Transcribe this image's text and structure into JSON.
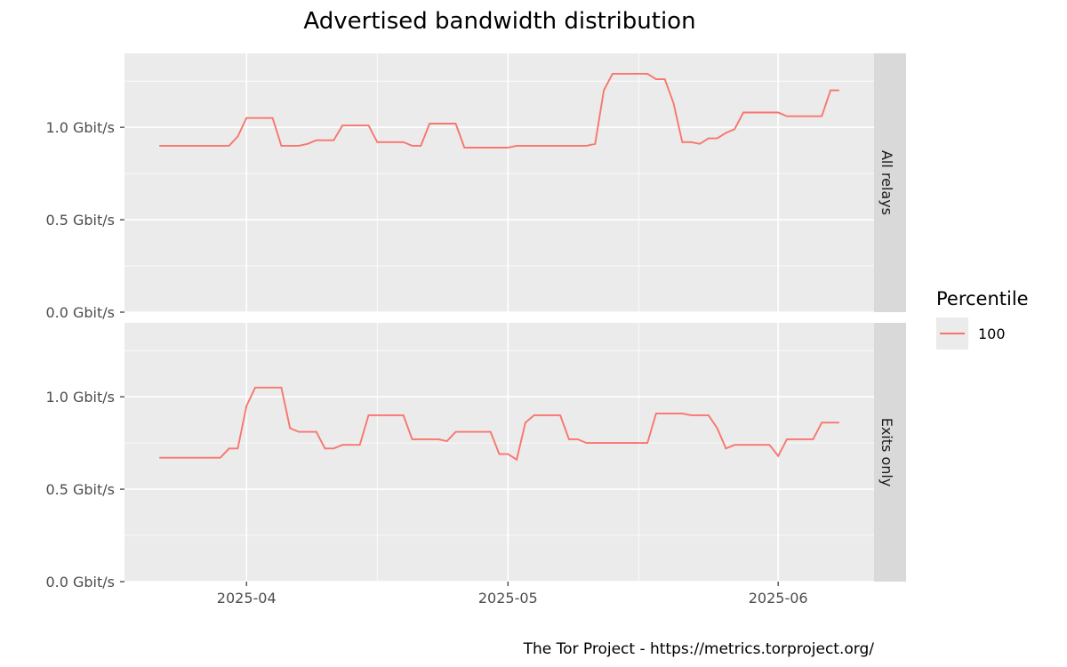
{
  "chart_data": {
    "type": "line",
    "title": "Advertised bandwidth distribution",
    "caption": "The Tor Project - https://metrics.torproject.org/",
    "y_unit": "Gbit/s",
    "ylim": [
      0,
      1.4
    ],
    "y_ticks": [
      {
        "value": 0.0,
        "label": "0.0 Gbit/s"
      },
      {
        "value": 0.5,
        "label": "0.5 Gbit/s"
      },
      {
        "value": 1.0,
        "label": "1.0 Gbit/s"
      }
    ],
    "xlim": [
      "2025-03-18",
      "2025-06-12"
    ],
    "x_ticks": [
      {
        "value": "2025-04-01",
        "label": "2025-04"
      },
      {
        "value": "2025-05-01",
        "label": "2025-05"
      },
      {
        "value": "2025-06-01",
        "label": "2025-06"
      }
    ],
    "x_minor": [
      "2025-03-16",
      "2025-04-16",
      "2025-05-16"
    ],
    "grid": true,
    "legend": {
      "title": "Percentile",
      "entries": [
        {
          "label": "100",
          "color": "#f8766d"
        }
      ],
      "placement": "right"
    },
    "colors": {
      "panel_bg": "#ebebeb",
      "strip_bg": "#d9d9d9",
      "line": "#f8766d",
      "grid": "#ffffff"
    },
    "facets": [
      {
        "label": "All relays",
        "series": [
          {
            "name": "100",
            "x": [
              "2025-03-22",
              "2025-03-23",
              "2025-03-24",
              "2025-03-25",
              "2025-03-26",
              "2025-03-27",
              "2025-03-28",
              "2025-03-29",
              "2025-03-30",
              "2025-03-31",
              "2025-04-01",
              "2025-04-02",
              "2025-04-03",
              "2025-04-04",
              "2025-04-05",
              "2025-04-06",
              "2025-04-07",
              "2025-04-08",
              "2025-04-09",
              "2025-04-10",
              "2025-04-11",
              "2025-04-12",
              "2025-04-13",
              "2025-04-14",
              "2025-04-15",
              "2025-04-16",
              "2025-04-17",
              "2025-04-18",
              "2025-04-19",
              "2025-04-20",
              "2025-04-21",
              "2025-04-22",
              "2025-04-23",
              "2025-04-24",
              "2025-04-25",
              "2025-04-26",
              "2025-04-27",
              "2025-04-28",
              "2025-04-29",
              "2025-04-30",
              "2025-05-01",
              "2025-05-02",
              "2025-05-03",
              "2025-05-04",
              "2025-05-05",
              "2025-05-06",
              "2025-05-07",
              "2025-05-08",
              "2025-05-09",
              "2025-05-10",
              "2025-05-11",
              "2025-05-12",
              "2025-05-13",
              "2025-05-14",
              "2025-05-15",
              "2025-05-16",
              "2025-05-17",
              "2025-05-18",
              "2025-05-19",
              "2025-05-20",
              "2025-05-21",
              "2025-05-22",
              "2025-05-23",
              "2025-05-24",
              "2025-05-25",
              "2025-05-26",
              "2025-05-27",
              "2025-05-28",
              "2025-05-29",
              "2025-05-30",
              "2025-05-31",
              "2025-06-01",
              "2025-06-02",
              "2025-06-03",
              "2025-06-04",
              "2025-06-05",
              "2025-06-06",
              "2025-06-07",
              "2025-06-08"
            ],
            "values": [
              0.9,
              0.9,
              0.9,
              0.9,
              0.9,
              0.9,
              0.9,
              0.9,
              0.9,
              0.95,
              1.05,
              1.05,
              1.05,
              1.05,
              0.9,
              0.9,
              0.9,
              0.91,
              0.93,
              0.93,
              0.93,
              1.01,
              1.01,
              1.01,
              1.01,
              0.92,
              0.92,
              0.92,
              0.92,
              0.9,
              0.9,
              1.02,
              1.02,
              1.02,
              1.02,
              0.89,
              0.89,
              0.89,
              0.89,
              0.89,
              0.89,
              0.9,
              0.9,
              0.9,
              0.9,
              0.9,
              0.9,
              0.9,
              0.9,
              0.9,
              0.91,
              1.2,
              1.29,
              1.29,
              1.29,
              1.29,
              1.29,
              1.26,
              1.26,
              1.13,
              0.92,
              0.92,
              0.91,
              0.94,
              0.94,
              0.97,
              0.99,
              1.08,
              1.08,
              1.08,
              1.08,
              1.08,
              1.06,
              1.06,
              1.06,
              1.06,
              1.06,
              1.2,
              1.2
            ]
          }
        ]
      },
      {
        "label": "Exits only",
        "series": [
          {
            "name": "100",
            "x": [
              "2025-03-22",
              "2025-03-23",
              "2025-03-24",
              "2025-03-25",
              "2025-03-26",
              "2025-03-27",
              "2025-03-28",
              "2025-03-29",
              "2025-03-30",
              "2025-03-31",
              "2025-04-01",
              "2025-04-02",
              "2025-04-03",
              "2025-04-04",
              "2025-04-05",
              "2025-04-06",
              "2025-04-07",
              "2025-04-08",
              "2025-04-09",
              "2025-04-10",
              "2025-04-11",
              "2025-04-12",
              "2025-04-13",
              "2025-04-14",
              "2025-04-15",
              "2025-04-16",
              "2025-04-17",
              "2025-04-18",
              "2025-04-19",
              "2025-04-20",
              "2025-04-21",
              "2025-04-22",
              "2025-04-23",
              "2025-04-24",
              "2025-04-25",
              "2025-04-26",
              "2025-04-27",
              "2025-04-28",
              "2025-04-29",
              "2025-04-30",
              "2025-05-01",
              "2025-05-02",
              "2025-05-03",
              "2025-05-04",
              "2025-05-05",
              "2025-05-06",
              "2025-05-07",
              "2025-05-08",
              "2025-05-09",
              "2025-05-10",
              "2025-05-11",
              "2025-05-12",
              "2025-05-13",
              "2025-05-14",
              "2025-05-15",
              "2025-05-16",
              "2025-05-17",
              "2025-05-18",
              "2025-05-19",
              "2025-05-20",
              "2025-05-21",
              "2025-05-22",
              "2025-05-23",
              "2025-05-24",
              "2025-05-25",
              "2025-05-26",
              "2025-05-27",
              "2025-05-28",
              "2025-05-29",
              "2025-05-30",
              "2025-05-31",
              "2025-06-01",
              "2025-06-02",
              "2025-06-03",
              "2025-06-04",
              "2025-06-05",
              "2025-06-06",
              "2025-06-07",
              "2025-06-08"
            ],
            "values": [
              0.67,
              0.67,
              0.67,
              0.67,
              0.67,
              0.67,
              0.67,
              0.67,
              0.72,
              0.72,
              0.95,
              1.05,
              1.05,
              1.05,
              1.05,
              0.83,
              0.81,
              0.81,
              0.81,
              0.72,
              0.72,
              0.74,
              0.74,
              0.74,
              0.9,
              0.9,
              0.9,
              0.9,
              0.9,
              0.77,
              0.77,
              0.77,
              0.77,
              0.76,
              0.81,
              0.81,
              0.81,
              0.81,
              0.81,
              0.69,
              0.69,
              0.66,
              0.86,
              0.9,
              0.9,
              0.9,
              0.9,
              0.77,
              0.77,
              0.75,
              0.75,
              0.75,
              0.75,
              0.75,
              0.75,
              0.75,
              0.75,
              0.91,
              0.91,
              0.91,
              0.91,
              0.9,
              0.9,
              0.9,
              0.83,
              0.72,
              0.74,
              0.74,
              0.74,
              0.74,
              0.74,
              0.68,
              0.77,
              0.77,
              0.77,
              0.77,
              0.86,
              0.86,
              0.86
            ]
          }
        ]
      }
    ]
  }
}
